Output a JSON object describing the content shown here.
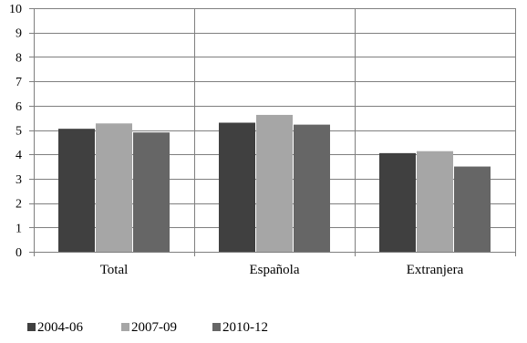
{
  "chart_data": {
    "type": "bar",
    "title": "",
    "xlabel": "",
    "ylabel": "",
    "categories": [
      "Total",
      "Española",
      "Extranjera"
    ],
    "series": [
      {
        "name": "2004-06",
        "values": [
          5.05,
          5.3,
          4.05
        ],
        "color": "#404040"
      },
      {
        "name": "2007-09",
        "values": [
          5.27,
          5.62,
          4.13
        ],
        "color": "#a6a6a6"
      },
      {
        "name": "2010-12",
        "values": [
          4.9,
          5.22,
          3.5
        ],
        "color": "#666666"
      }
    ],
    "ylim": [
      0,
      10
    ],
    "yticks": [
      "0",
      "1",
      "2",
      "3",
      "4",
      "5",
      "6",
      "7",
      "8",
      "9",
      "10"
    ],
    "grid": true,
    "legend": "bottom-left"
  }
}
